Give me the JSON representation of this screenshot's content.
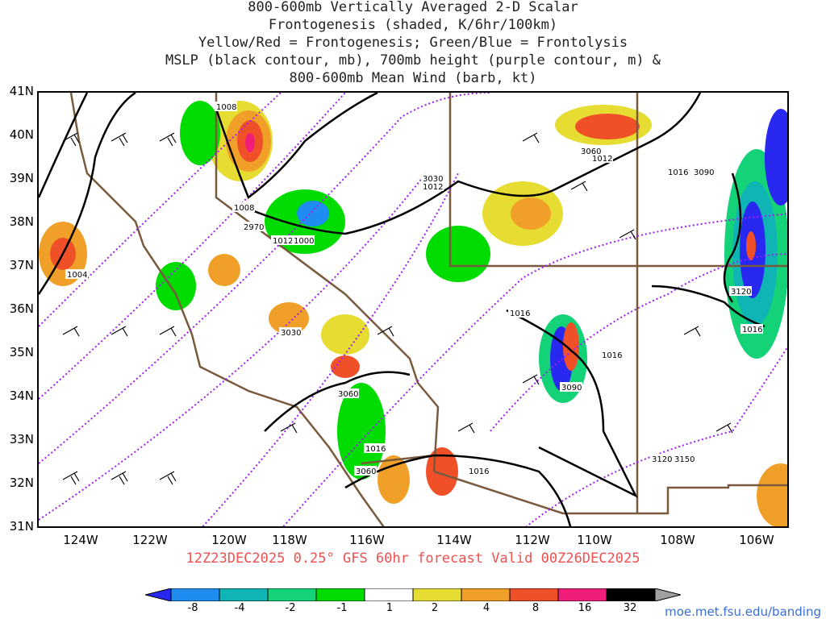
{
  "title": {
    "line1": "800-600mb Vertically Averaged 2-D Scalar",
    "line2": "Frontogenesis (shaded, K/6hr/100km)",
    "line3": "Yellow/Red = Frontogenesis;  Green/Blue = Frontolysis",
    "line4": "MSLP (black contour, mb), 700mb height (purple contour, m) &",
    "line5": "800-600mb Mean Wind (barb, kt)"
  },
  "lat_labels": [
    "41N",
    "40N",
    "39N",
    "38N",
    "37N",
    "36N",
    "35N",
    "34N",
    "33N",
    "32N",
    "31N"
  ],
  "lon_labels": [
    "124W",
    "122W",
    "120W",
    "118W",
    "116W",
    "114W",
    "112W",
    "110W",
    "108W",
    "106W"
  ],
  "mslp_labels": [
    "1008",
    "1008",
    "1012",
    "1012",
    "1000",
    "1004",
    "1012",
    "1016",
    "1016",
    "1016",
    "1016",
    "1016",
    "1016"
  ],
  "height_labels": [
    "2970",
    "3030",
    "3030",
    "3060",
    "3060",
    "3060",
    "3090",
    "3090",
    "3120",
    "3120",
    "3150"
  ],
  "valid_text": "12Z23DEC2025 0.25° GFS 60hr forecast Valid 00Z26DEC2025",
  "colorbar": {
    "labels": [
      "-8",
      "-4",
      "-2",
      "-1",
      "1",
      "2",
      "4",
      "8",
      "16",
      "32"
    ],
    "colors": [
      "#2828f0",
      "#1e8cf0",
      "#0fb4b4",
      "#14d278",
      "#00dc00",
      "#ffffff",
      "#e6dc32",
      "#f0a028",
      "#f05028",
      "#f01e78",
      "#000000",
      "#a0a0a0"
    ]
  },
  "credit": "moe.met.fsu.edu/banding",
  "colors": {
    "mslp": "#000000",
    "height": "#a020f0",
    "border": "#7a5a3c",
    "valid": "#f05050",
    "credit": "#3a6fd8"
  }
}
